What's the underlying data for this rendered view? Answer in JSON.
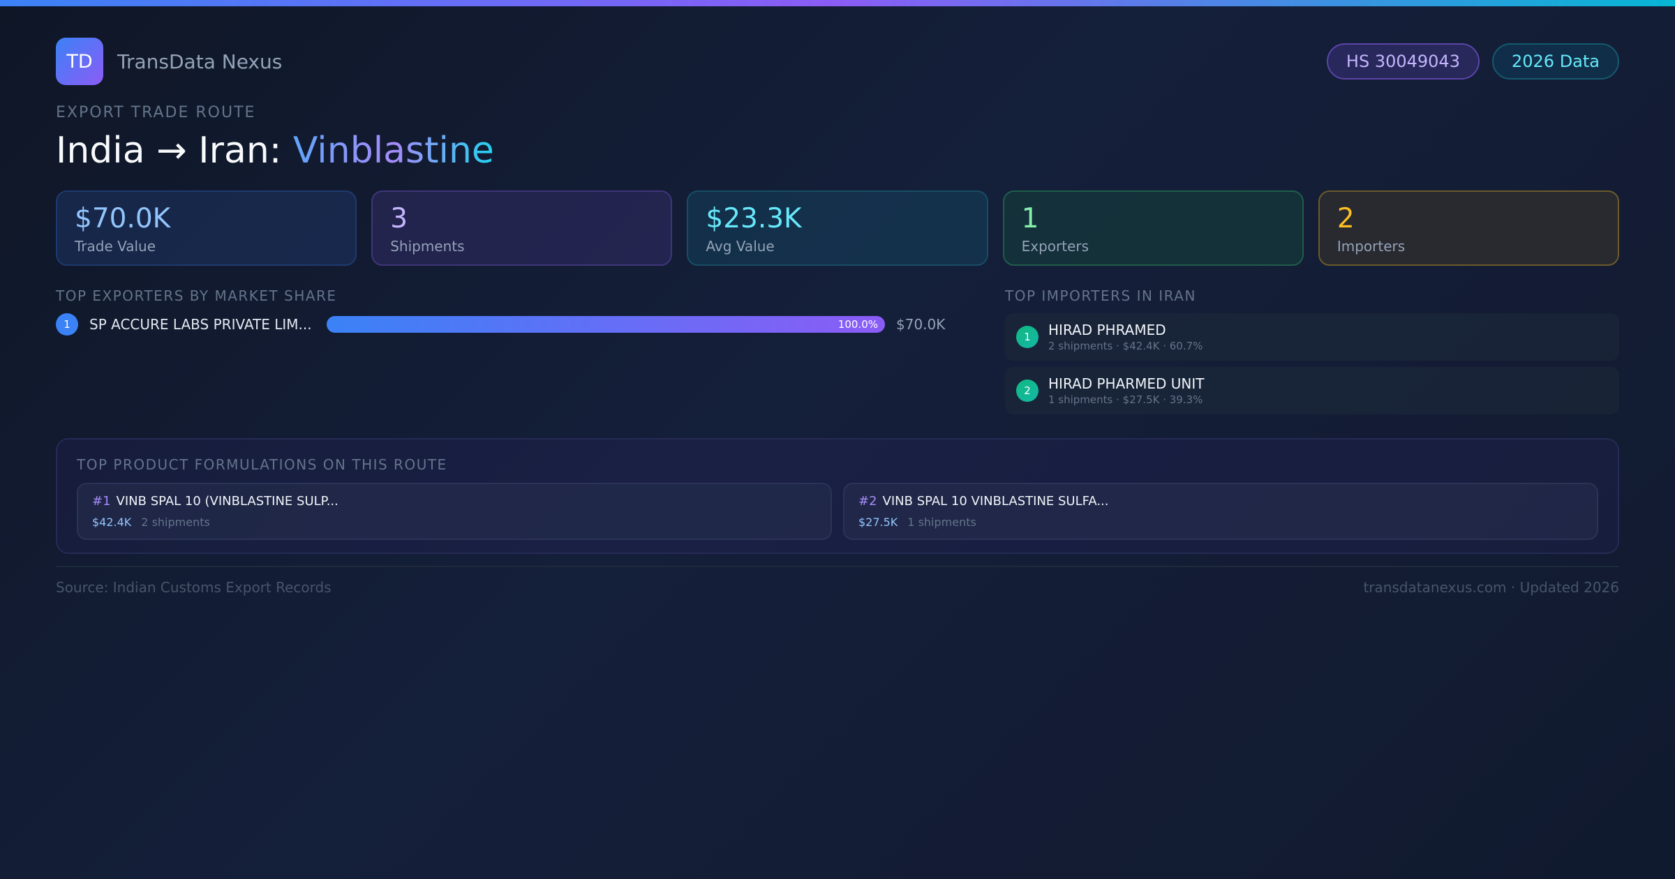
{
  "brand": {
    "logo_text": "TD",
    "name": "TransData Nexus"
  },
  "badges": {
    "hs_code": "HS 30049043",
    "data_year": "2026 Data"
  },
  "route": {
    "subtitle": "EXPORT TRADE ROUTE",
    "origin": "India",
    "arrow": "→",
    "destination": "Iran:",
    "product": "Vinblastine"
  },
  "stats": [
    {
      "value": "$70.0K",
      "label": "Trade Value"
    },
    {
      "value": "3",
      "label": "Shipments"
    },
    {
      "value": "$23.3K",
      "label": "Avg Value"
    },
    {
      "value": "1",
      "label": "Exporters"
    },
    {
      "value": "2",
      "label": "Importers"
    }
  ],
  "exporters": {
    "title": "TOP EXPORTERS BY MARKET SHARE",
    "items": [
      {
        "rank": "1",
        "name": "SP ACCURE LABS PRIVATE LIM...",
        "share_label": "100.0%",
        "share": 100,
        "value": "$70.0K"
      }
    ]
  },
  "importers": {
    "title": "TOP IMPORTERS IN IRAN",
    "items": [
      {
        "rank": "1",
        "name": "HIRAD PHRAMED",
        "meta": "2 shipments · $42.4K · 60.7%"
      },
      {
        "rank": "2",
        "name": "HIRAD PHARMED UNIT",
        "meta": "1 shipments · $27.5K · 39.3%"
      }
    ]
  },
  "formulations": {
    "title": "TOP PRODUCT FORMULATIONS ON THIS ROUTE",
    "items": [
      {
        "rank": "#1",
        "name": "VINB SPAL 10 (VINBLASTINE SULP...",
        "value": "$42.4K",
        "shipments": "2 shipments"
      },
      {
        "rank": "#2",
        "name": "VINB SPAL 10 VINBLASTINE SULFA...",
        "value": "$27.5K",
        "shipments": "1 shipments"
      }
    ]
  },
  "footer": {
    "source": "Source: Indian Customs Export Records",
    "site": "transdatanexus.com · Updated 2026"
  },
  "colors": {
    "accent_blue": "#3b82f6",
    "accent_purple": "#8b5cf6",
    "accent_cyan": "#06b6d4",
    "importer_badge": "#14b8a6"
  }
}
